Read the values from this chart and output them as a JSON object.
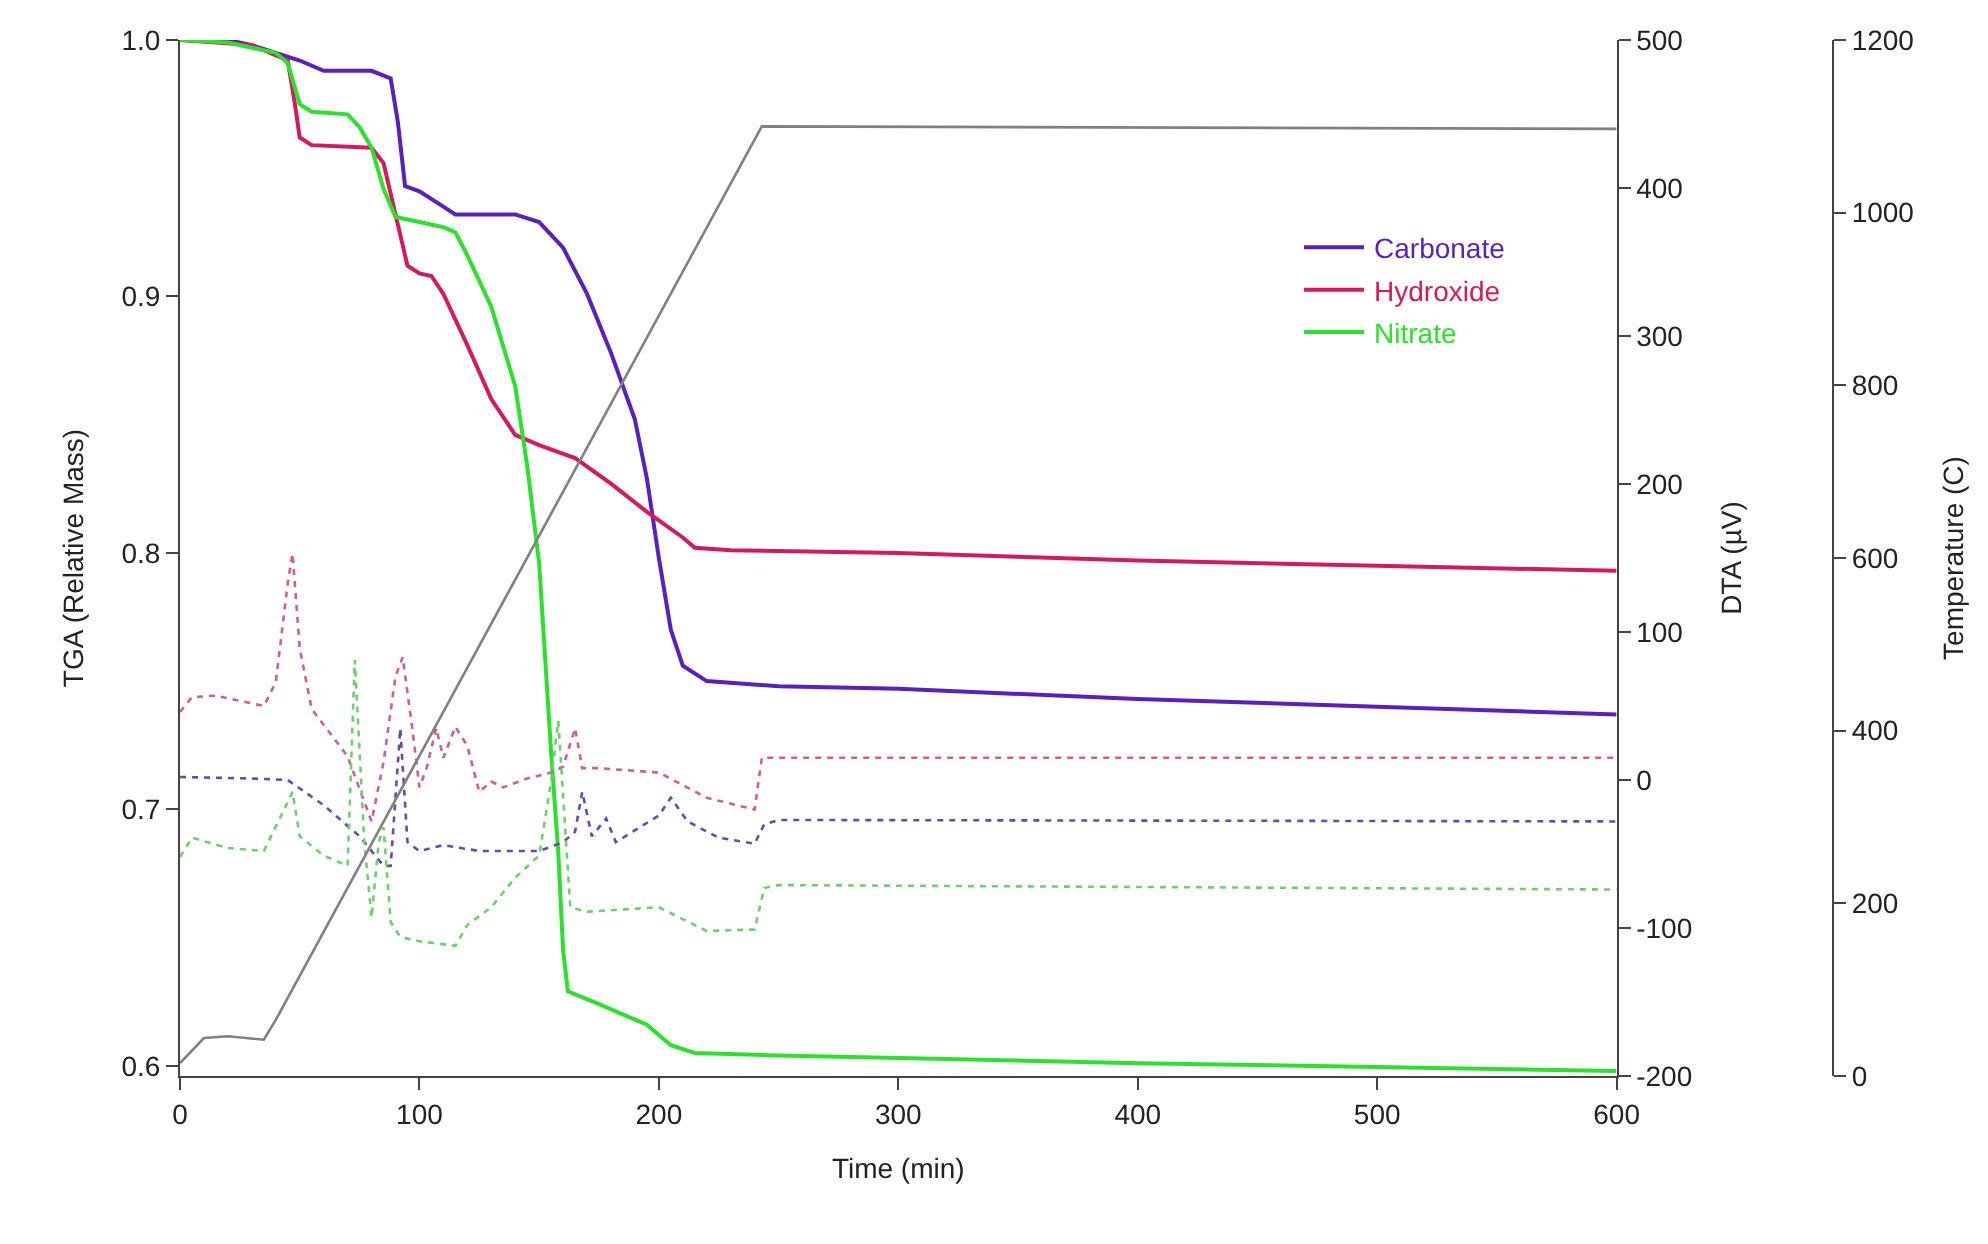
{
  "chart_data": {
    "type": "line",
    "xlabel": "Time (min)",
    "ylabel": "TGA (Relative Mass)",
    "y2label": "DTA (µV)",
    "y3label": "Temperature (C)",
    "xlim": [
      0,
      600
    ],
    "xticks": [
      0,
      100,
      200,
      300,
      400,
      500,
      600
    ],
    "ylim": [
      0.596,
      1.0
    ],
    "yticks": [
      0.6,
      0.7,
      0.8,
      0.9,
      {
        "value": 1.0,
        "label": "1.0"
      }
    ],
    "y2lim": [
      -200,
      500
    ],
    "y2ticks": [
      -200,
      -100,
      0,
      100,
      200,
      300,
      400,
      500
    ],
    "y3lim": [
      0,
      1200
    ],
    "y3ticks": [
      0,
      200,
      400,
      600,
      800,
      1000,
      1200
    ],
    "legend": "top right",
    "marker": "none",
    "series": [
      {
        "name": "Carbonate",
        "color": "#5b1fc0",
        "line_style": "solid",
        "x": [
          0,
          20,
          30,
          50,
          60,
          80,
          88,
          91,
          94,
          100,
          110,
          115,
          140,
          150,
          160,
          170,
          180,
          190,
          195,
          200,
          205,
          210,
          220,
          250,
          300,
          400,
          500,
          600
        ],
        "values": [
          1.0,
          1.0,
          0.998,
          0.992,
          0.988,
          0.988,
          0.985,
          0.968,
          0.943,
          0.941,
          0.935,
          0.932,
          0.932,
          0.929,
          0.919,
          0.901,
          0.878,
          0.852,
          0.829,
          0.798,
          0.77,
          0.756,
          0.75,
          0.748,
          0.747,
          0.743,
          0.74,
          0.737
        ]
      },
      {
        "name": "Hydroxide",
        "color": "#d41a5e",
        "line_style": "solid",
        "x": [
          0,
          30,
          45,
          48,
          50,
          55,
          80,
          85,
          90,
          95,
          100,
          105,
          110,
          120,
          130,
          140,
          150,
          165,
          180,
          195,
          210,
          215,
          230,
          300,
          400,
          500,
          600
        ],
        "values": [
          1.0,
          0.998,
          0.992,
          0.975,
          0.962,
          0.959,
          0.958,
          0.952,
          0.932,
          0.912,
          0.909,
          0.908,
          0.901,
          0.881,
          0.86,
          0.846,
          0.842,
          0.837,
          0.827,
          0.816,
          0.806,
          0.802,
          0.801,
          0.8,
          0.797,
          0.795,
          0.793
        ]
      },
      {
        "name": "Nitrate",
        "color": "#2ee02e",
        "line_style": "solid",
        "x": [
          0,
          20,
          40,
          45,
          50,
          55,
          70,
          75,
          80,
          85,
          90,
          100,
          110,
          115,
          120,
          130,
          140,
          145,
          150,
          155,
          158,
          160,
          162,
          175,
          195,
          205,
          215,
          250,
          400,
          600
        ],
        "values": [
          1.0,
          0.999,
          0.995,
          0.991,
          0.975,
          0.972,
          0.971,
          0.966,
          0.958,
          0.942,
          0.931,
          0.929,
          0.927,
          0.925,
          0.916,
          0.896,
          0.865,
          0.834,
          0.796,
          0.722,
          0.683,
          0.645,
          0.629,
          0.624,
          0.616,
          0.608,
          0.605,
          0.604,
          0.601,
          0.598
        ]
      },
      {
        "color": "#6a4aa8",
        "axis": "y2",
        "line_style": "dotted",
        "x": [
          0,
          30,
          45,
          60,
          75,
          85,
          88,
          92,
          95,
          100,
          110,
          125,
          150,
          160,
          165,
          168,
          172,
          178,
          182,
          200,
          205,
          212,
          225,
          240,
          244,
          250,
          600
        ],
        "values": [
          2,
          1,
          0,
          -17,
          -38,
          -58,
          -58,
          35,
          -42,
          -48,
          -44,
          -48,
          -48,
          -42,
          -35,
          -8,
          -38,
          -26,
          -42,
          -24,
          -12,
          -28,
          -39,
          -43,
          -30,
          -27,
          -28
        ]
      },
      {
        "color": "#cc5f9a",
        "axis": "y2",
        "line_style": "dotted",
        "x": [
          0,
          5,
          15,
          35,
          40,
          45,
          47,
          50,
          55,
          70,
          80,
          85,
          90,
          93,
          97,
          100,
          103,
          107,
          110,
          115,
          120,
          125,
          130,
          135,
          145,
          155,
          160,
          165,
          168,
          175,
          200,
          220,
          240,
          243,
          250,
          600
        ],
        "values": [
          46,
          56,
          57,
          50,
          66,
          133,
          153,
          89,
          48,
          16,
          -28,
          12,
          70,
          83,
          35,
          -5,
          8,
          35,
          15,
          36,
          23,
          -8,
          -1,
          -5,
          1,
          5,
          9,
          35,
          8,
          8,
          5,
          -12,
          -20,
          15,
          15,
          15
        ]
      },
      {
        "color": "#6fcf6f",
        "axis": "y2",
        "line_style": "dotted",
        "x": [
          0,
          5,
          20,
          35,
          45,
          47,
          50,
          60,
          70,
          73,
          77,
          80,
          83,
          85,
          88,
          92,
          100,
          115,
          120,
          130,
          140,
          150,
          155,
          158,
          163,
          170,
          200,
          220,
          240,
          244,
          250,
          600
        ],
        "values": [
          -52,
          -39,
          -46,
          -48,
          -15,
          -8,
          -38,
          -51,
          -58,
          81,
          -42,
          -93,
          -42,
          -32,
          -96,
          -106,
          -109,
          -112,
          -98,
          -86,
          -66,
          -51,
          -1,
          40,
          -86,
          -89,
          -86,
          -102,
          -101,
          -73,
          -71,
          -74
        ]
      },
      {
        "color": "#808080",
        "axis": "y3",
        "line_style": "solid",
        "x": [
          0,
          10,
          20,
          35,
          40,
          243,
          600
        ],
        "values": [
          15,
          44,
          46,
          42,
          65,
          1100,
          1097
        ]
      }
    ]
  }
}
